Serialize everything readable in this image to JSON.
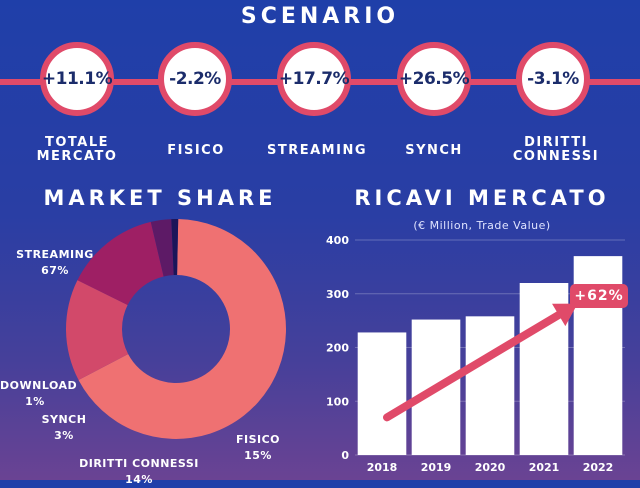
{
  "scenario": {
    "title": "SCENARIO",
    "items": [
      {
        "value": "+11.1%",
        "label": "TOTALE MERCATO"
      },
      {
        "value": "-2.2%",
        "label": "FISICO"
      },
      {
        "value": "+17.7%",
        "label": "STREAMING"
      },
      {
        "value": "+26.5%",
        "label": "SYNCH"
      },
      {
        "value": "-3.1%",
        "label": "DIRITTI CONNESSI"
      }
    ]
  },
  "colors": {
    "accent": "#e04a69",
    "streaming": "#ef7172",
    "fisico": "#d2496a",
    "diritti": "#9e1f64",
    "synch": "#5d1a66",
    "download": "#1b1559",
    "bar": "#ffffff"
  },
  "chart_data": [
    {
      "type": "pie",
      "title": "MARKET SHARE",
      "slices": [
        {
          "name": "STREAMING",
          "value": 67,
          "label": "67%"
        },
        {
          "name": "FISICO",
          "value": 15,
          "label": "15%"
        },
        {
          "name": "DIRITTI CONNESSI",
          "value": 14,
          "label": "14%"
        },
        {
          "name": "SYNCH",
          "value": 3,
          "label": "3%"
        },
        {
          "name": "DOWNLOAD",
          "value": 1,
          "label": "1%"
        }
      ]
    },
    {
      "type": "bar",
      "title": "RICAVI MERCATO",
      "subtitle": "(€ Million, Trade Value)",
      "categories": [
        "2018",
        "2019",
        "2020",
        "2021",
        "2022"
      ],
      "values": [
        228,
        252,
        258,
        320,
        370
      ],
      "ylim": [
        0,
        400
      ],
      "yticks": [
        0,
        100,
        200,
        300,
        400
      ],
      "grid": true,
      "annotation": "+62%"
    }
  ]
}
